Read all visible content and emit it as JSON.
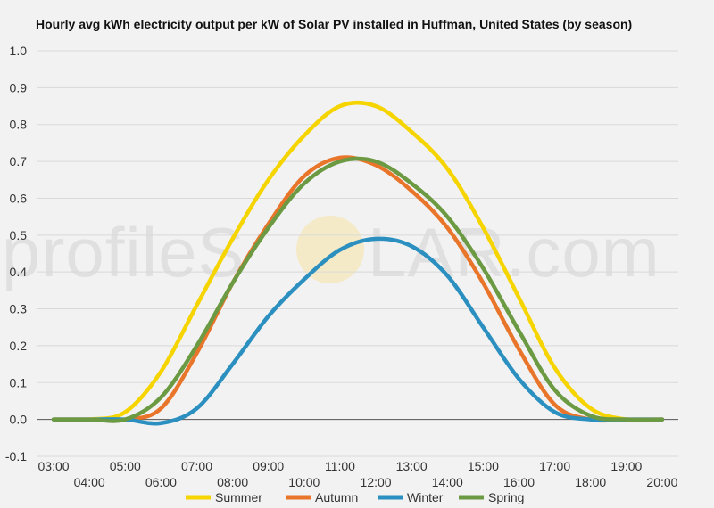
{
  "watermark": {
    "left": "profileS",
    "right": "LAR.com"
  },
  "chart_data": {
    "type": "line",
    "title": "Hourly avg kWh electricity output per kW of Solar PV installed in Huffman, United States (by season)",
    "xlabel": "",
    "ylabel": "",
    "x": [
      3,
      4,
      5,
      6,
      7,
      8,
      9,
      10,
      11,
      12,
      13,
      14,
      15,
      16,
      17,
      18,
      19,
      20
    ],
    "x_tick_labels": [
      "03:00",
      "04:00",
      "05:00",
      "06:00",
      "07:00",
      "08:00",
      "09:00",
      "10:00",
      "11:00",
      "12:00",
      "13:00",
      "14:00",
      "15:00",
      "16:00",
      "17:00",
      "18:00",
      "19:00",
      "20:00"
    ],
    "ylim": [
      -0.1,
      1.0
    ],
    "y_ticks": [
      -0.1,
      0.0,
      0.1,
      0.2,
      0.3,
      0.4,
      0.5,
      0.6,
      0.7,
      0.8,
      0.9,
      1.0
    ],
    "y_tick_labels": [
      "-0.1",
      "0.0",
      "0.1",
      "0.2",
      "0.3",
      "0.4",
      "0.5",
      "0.6",
      "0.7",
      "0.8",
      "0.9",
      "1.0"
    ],
    "grid": true,
    "legend_position": "bottom",
    "series": [
      {
        "name": "Summer",
        "color": "#f5d400",
        "values": [
          0.0,
          0.0,
          0.02,
          0.13,
          0.31,
          0.49,
          0.65,
          0.77,
          0.85,
          0.85,
          0.78,
          0.68,
          0.52,
          0.33,
          0.14,
          0.03,
          0.0,
          0.0
        ]
      },
      {
        "name": "Autumn",
        "color": "#e8752a",
        "values": [
          0.0,
          0.0,
          0.0,
          0.03,
          0.18,
          0.37,
          0.53,
          0.66,
          0.71,
          0.69,
          0.62,
          0.52,
          0.37,
          0.19,
          0.04,
          0.0,
          0.0,
          0.0
        ]
      },
      {
        "name": "Winter",
        "color": "#2b90c0",
        "values": [
          0.0,
          0.0,
          0.0,
          -0.01,
          0.03,
          0.15,
          0.28,
          0.38,
          0.46,
          0.49,
          0.47,
          0.39,
          0.25,
          0.11,
          0.02,
          0.0,
          0.0,
          0.0
        ]
      },
      {
        "name": "Spring",
        "color": "#6b9a43",
        "values": [
          0.0,
          0.0,
          0.0,
          0.06,
          0.2,
          0.37,
          0.52,
          0.64,
          0.7,
          0.7,
          0.64,
          0.55,
          0.41,
          0.24,
          0.08,
          0.01,
          0.0,
          0.0
        ]
      }
    ]
  }
}
